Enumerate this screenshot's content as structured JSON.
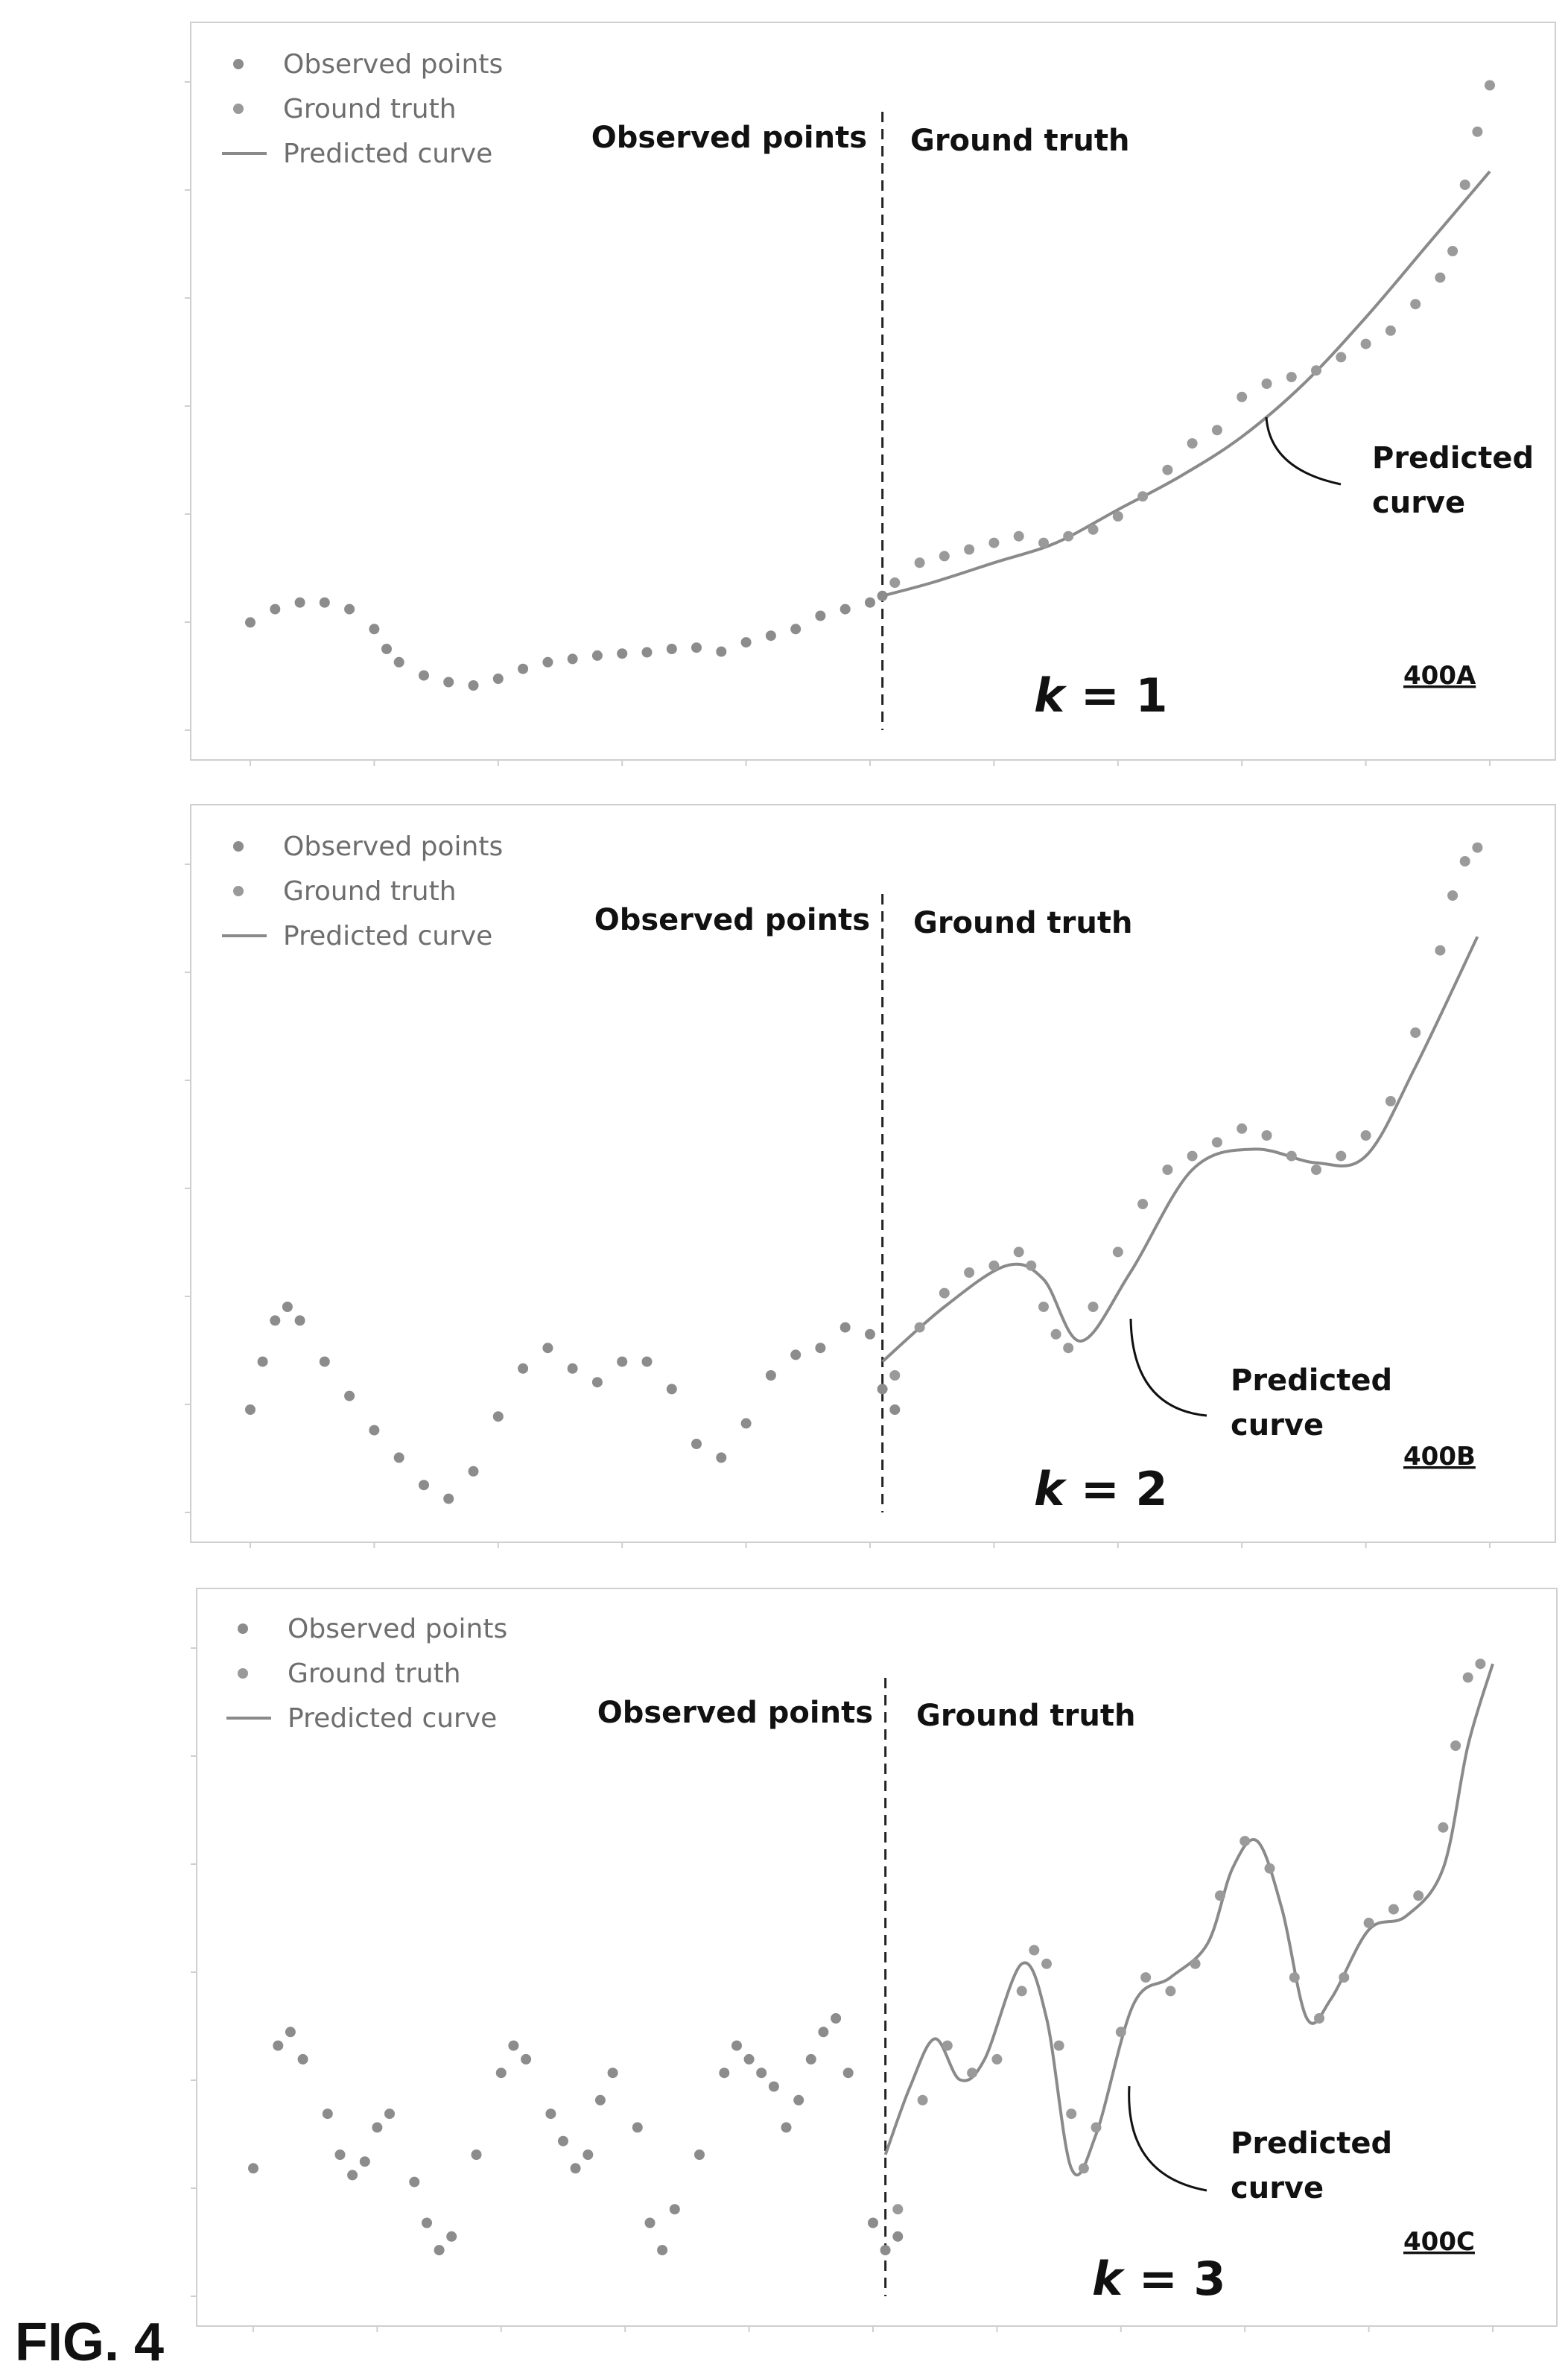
{
  "figure_label": "FIG. 4",
  "legend": {
    "observed": "Observed points",
    "ground_truth": "Ground truth",
    "predicted": "Predicted curve"
  },
  "colors": {
    "points": "#8c8c8c",
    "curve": "#8a8a8a",
    "frame": "#cfcfcf",
    "text": "#111111"
  },
  "chart_data": [
    {
      "type": "scatter",
      "id": "400A",
      "ref": "400A",
      "k_label": "1",
      "region_left_label": "Observed points",
      "region_right_label": "Ground truth",
      "callout": [
        "Predicted",
        "curve"
      ],
      "legend": [
        "Observed points",
        "Ground truth",
        "Predicted curve"
      ],
      "grid": false,
      "legend_position": "top-left",
      "xlim": [
        0,
        100
      ],
      "ylim": [
        0,
        100
      ],
      "split_x": 51,
      "observed": [
        [
          0,
          14
        ],
        [
          2,
          16
        ],
        [
          4,
          17
        ],
        [
          6,
          17
        ],
        [
          8,
          16
        ],
        [
          10,
          13
        ],
        [
          11,
          10
        ],
        [
          12,
          8
        ],
        [
          14,
          6
        ],
        [
          16,
          5
        ],
        [
          18,
          4.5
        ],
        [
          20,
          5.5
        ],
        [
          22,
          7
        ],
        [
          24,
          8
        ],
        [
          26,
          8.5
        ],
        [
          28,
          9
        ],
        [
          30,
          9.3
        ],
        [
          32,
          9.5
        ],
        [
          34,
          10
        ],
        [
          36,
          10.2
        ],
        [
          38,
          9.6
        ],
        [
          40,
          11
        ],
        [
          42,
          12
        ],
        [
          44,
          13
        ],
        [
          46,
          15
        ],
        [
          48,
          16
        ],
        [
          50,
          17
        ],
        [
          51,
          18
        ]
      ],
      "ground_truth": [
        [
          52,
          20
        ],
        [
          54,
          23
        ],
        [
          56,
          24
        ],
        [
          58,
          25
        ],
        [
          60,
          26
        ],
        [
          62,
          27
        ],
        [
          64,
          26
        ],
        [
          66,
          27
        ],
        [
          68,
          28
        ],
        [
          70,
          30
        ],
        [
          72,
          33
        ],
        [
          74,
          37
        ],
        [
          76,
          41
        ],
        [
          78,
          43
        ],
        [
          80,
          48
        ],
        [
          82,
          50
        ],
        [
          84,
          51
        ],
        [
          86,
          52
        ],
        [
          88,
          54
        ],
        [
          90,
          56
        ],
        [
          92,
          58
        ],
        [
          94,
          62
        ],
        [
          96,
          66
        ],
        [
          97,
          70
        ],
        [
          98,
          80
        ],
        [
          99,
          88
        ],
        [
          100,
          95
        ]
      ],
      "predicted": [
        [
          51,
          18
        ],
        [
          55,
          20
        ],
        [
          60,
          23
        ],
        [
          65,
          26
        ],
        [
          70,
          31
        ],
        [
          75,
          36
        ],
        [
          80,
          42
        ],
        [
          85,
          50
        ],
        [
          90,
          60
        ],
        [
          95,
          71
        ],
        [
          100,
          82
        ]
      ]
    },
    {
      "type": "scatter",
      "id": "400B",
      "ref": "400B",
      "k_label": "2",
      "region_left_label": "Observed points",
      "region_right_label": "Ground truth",
      "callout": [
        "Predicted",
        "curve"
      ],
      "legend": [
        "Observed points",
        "Ground truth",
        "Predicted curve"
      ],
      "grid": false,
      "legend_position": "top-left",
      "xlim": [
        0,
        100
      ],
      "ylim": [
        0,
        100
      ],
      "split_x": 51,
      "observed": [
        [
          0,
          15
        ],
        [
          1,
          22
        ],
        [
          2,
          28
        ],
        [
          3,
          30
        ],
        [
          4,
          28
        ],
        [
          6,
          22
        ],
        [
          8,
          17
        ],
        [
          10,
          12
        ],
        [
          12,
          8
        ],
        [
          14,
          4
        ],
        [
          16,
          2
        ],
        [
          18,
          6
        ],
        [
          20,
          14
        ],
        [
          22,
          21
        ],
        [
          24,
          24
        ],
        [
          26,
          21
        ],
        [
          28,
          19
        ],
        [
          30,
          22
        ],
        [
          32,
          22
        ],
        [
          34,
          18
        ],
        [
          36,
          10
        ],
        [
          38,
          8
        ],
        [
          40,
          13
        ],
        [
          42,
          20
        ],
        [
          44,
          23
        ],
        [
          46,
          24
        ],
        [
          48,
          27
        ],
        [
          50,
          26
        ],
        [
          51,
          18
        ],
        [
          52,
          15
        ]
      ],
      "ground_truth": [
        [
          52,
          20
        ],
        [
          54,
          27
        ],
        [
          56,
          32
        ],
        [
          58,
          35
        ],
        [
          60,
          36
        ],
        [
          62,
          38
        ],
        [
          63,
          36
        ],
        [
          64,
          30
        ],
        [
          65,
          26
        ],
        [
          66,
          24
        ],
        [
          68,
          30
        ],
        [
          70,
          38
        ],
        [
          72,
          45
        ],
        [
          74,
          50
        ],
        [
          76,
          52
        ],
        [
          78,
          54
        ],
        [
          80,
          56
        ],
        [
          82,
          55
        ],
        [
          84,
          52
        ],
        [
          86,
          50
        ],
        [
          88,
          52
        ],
        [
          90,
          55
        ],
        [
          92,
          60
        ],
        [
          94,
          70
        ],
        [
          96,
          82
        ],
        [
          97,
          90
        ],
        [
          98,
          95
        ],
        [
          99,
          97
        ]
      ],
      "predicted": [
        [
          51,
          22
        ],
        [
          56,
          30
        ],
        [
          61,
          36
        ],
        [
          64,
          34
        ],
        [
          67,
          25
        ],
        [
          71,
          35
        ],
        [
          76,
          50
        ],
        [
          81,
          53
        ],
        [
          86,
          51
        ],
        [
          90,
          52
        ],
        [
          94,
          65
        ],
        [
          99,
          84
        ]
      ]
    },
    {
      "type": "scatter",
      "id": "400C",
      "ref": "400C",
      "k_label": "3",
      "region_left_label": "Observed points",
      "region_right_label": "Ground truth",
      "callout": [
        "Predicted",
        "curve"
      ],
      "legend": [
        "Observed points",
        "Ground truth",
        "Predicted curve"
      ],
      "grid": false,
      "legend_position": "top-left",
      "xlim": [
        0,
        100
      ],
      "ylim": [
        0,
        100
      ],
      "split_x": 51,
      "observed": [
        [
          0,
          18
        ],
        [
          2,
          36
        ],
        [
          3,
          38
        ],
        [
          4,
          34
        ],
        [
          6,
          26
        ],
        [
          7,
          20
        ],
        [
          8,
          17
        ],
        [
          9,
          19
        ],
        [
          10,
          24
        ],
        [
          11,
          26
        ],
        [
          13,
          16
        ],
        [
          14,
          10
        ],
        [
          15,
          6
        ],
        [
          16,
          8
        ],
        [
          18,
          20
        ],
        [
          20,
          32
        ],
        [
          21,
          36
        ],
        [
          22,
          34
        ],
        [
          24,
          26
        ],
        [
          25,
          22
        ],
        [
          26,
          18
        ],
        [
          27,
          20
        ],
        [
          28,
          28
        ],
        [
          29,
          32
        ],
        [
          31,
          24
        ],
        [
          32,
          10
        ],
        [
          33,
          6
        ],
        [
          34,
          12
        ],
        [
          36,
          20
        ],
        [
          38,
          32
        ],
        [
          39,
          36
        ],
        [
          40,
          34
        ],
        [
          41,
          32
        ],
        [
          42,
          30
        ],
        [
          43,
          24
        ],
        [
          44,
          28
        ],
        [
          45,
          34
        ],
        [
          46,
          38
        ],
        [
          47,
          40
        ],
        [
          48,
          32
        ],
        [
          50,
          10
        ],
        [
          51,
          6
        ],
        [
          52,
          8
        ]
      ],
      "ground_truth": [
        [
          52,
          12
        ],
        [
          54,
          28
        ],
        [
          56,
          36
        ],
        [
          58,
          32
        ],
        [
          60,
          34
        ],
        [
          62,
          44
        ],
        [
          63,
          50
        ],
        [
          64,
          48
        ],
        [
          65,
          36
        ],
        [
          66,
          26
        ],
        [
          67,
          18
        ],
        [
          68,
          24
        ],
        [
          70,
          38
        ],
        [
          72,
          46
        ],
        [
          74,
          44
        ],
        [
          76,
          48
        ],
        [
          78,
          58
        ],
        [
          80,
          66
        ],
        [
          82,
          62
        ],
        [
          84,
          46
        ],
        [
          86,
          40
        ],
        [
          88,
          46
        ],
        [
          90,
          54
        ],
        [
          92,
          56
        ],
        [
          94,
          58
        ],
        [
          96,
          68
        ],
        [
          97,
          80
        ],
        [
          98,
          90
        ],
        [
          99,
          92
        ]
      ],
      "predicted": [
        [
          51,
          20
        ],
        [
          53,
          30
        ],
        [
          55,
          37
        ],
        [
          57,
          31
        ],
        [
          59,
          34
        ],
        [
          62,
          48
        ],
        [
          64,
          40
        ],
        [
          66,
          18
        ],
        [
          68,
          23
        ],
        [
          71,
          42
        ],
        [
          74,
          46
        ],
        [
          77,
          51
        ],
        [
          79,
          62
        ],
        [
          81,
          66
        ],
        [
          83,
          56
        ],
        [
          85,
          40
        ],
        [
          87,
          43
        ],
        [
          90,
          53
        ],
        [
          93,
          55
        ],
        [
          96,
          62
        ],
        [
          98,
          80
        ],
        [
          100,
          92
        ]
      ]
    }
  ]
}
